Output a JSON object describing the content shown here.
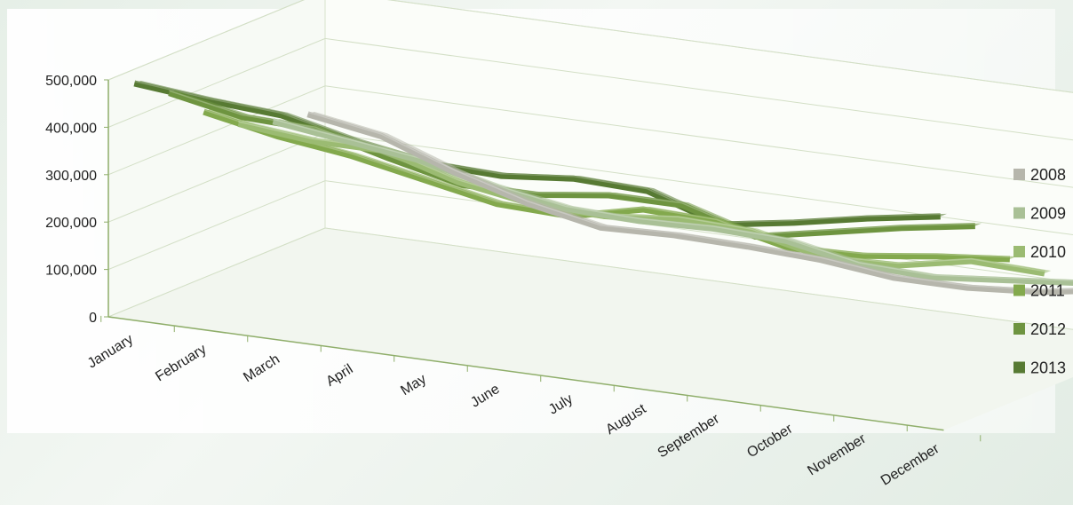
{
  "chart_data": {
    "type": "line",
    "style": "3d-ribbon",
    "categories": [
      "January",
      "February",
      "March",
      "April",
      "May",
      "June",
      "July",
      "August",
      "September",
      "October",
      "November",
      "December"
    ],
    "y_ticks": [
      "0",
      "100,000",
      "200,000",
      "300,000",
      "400,000",
      "500,000"
    ],
    "ylim": [
      0,
      500000
    ],
    "grid": true,
    "legend_position": "right",
    "series": [
      {
        "name": "2008",
        "color": "#b6b6ac",
        "values": [
          255000,
          230000,
          175000,
          130000,
          100000,
          105000,
          102000,
          95000,
          78000,
          78000,
          90000,
          115000
        ]
      },
      {
        "name": "2009",
        "color": "#a9c096",
        "values": [
          270000,
          250000,
          230000,
          195000,
          170000,
          165000,
          170000,
          165000,
          135000,
          130000,
          145000,
          160000
        ]
      },
      {
        "name": "2010",
        "color": "#9bbb72",
        "values": [
          295000,
          280000,
          280000,
          235000,
          210000,
          205000,
          220000,
          215000,
          180000,
          185000,
          215000,
          210000
        ]
      },
      {
        "name": "2011",
        "color": "#83a94d",
        "values": [
          350000,
          320000,
          300000,
          270000,
          240000,
          235000,
          270000,
          265000,
          230000,
          235000,
          255000,
          270000
        ]
      },
      {
        "name": "2012",
        "color": "#6e9440",
        "values": [
          420000,
          390000,
          385000,
          345000,
          310000,
          310000,
          330000,
          330000,
          285000,
          315000,
          345000,
          370000
        ]
      },
      {
        "name": "2013",
        "color": "#577a33",
        "values": [
          470000,
          455000,
          445000,
          410000,
          385000,
          380000,
          395000,
          390000,
          340000,
          365000,
          395000,
          420000
        ]
      }
    ]
  }
}
